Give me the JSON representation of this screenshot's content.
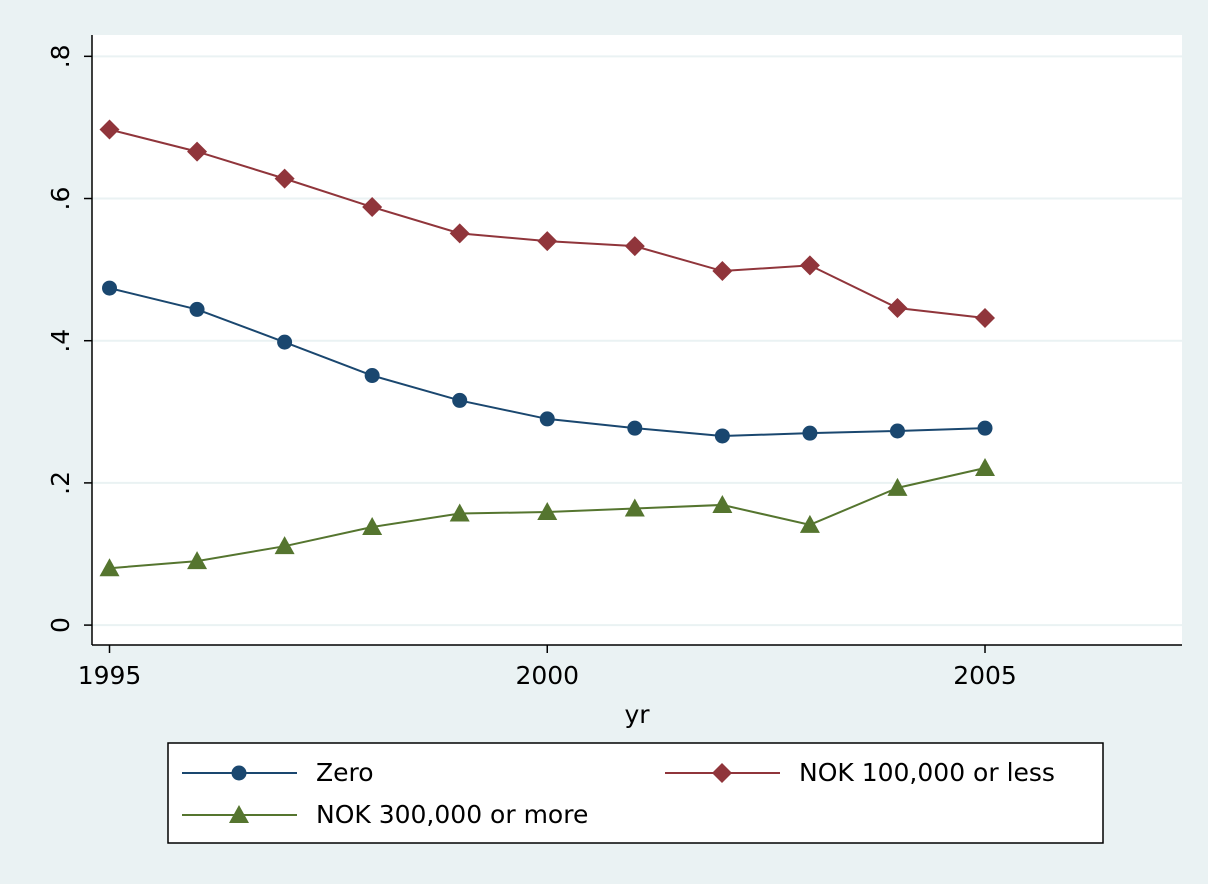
{
  "chart_data": {
    "type": "line",
    "x": [
      1995,
      1996,
      1997,
      1998,
      1999,
      2000,
      2001,
      2002,
      2003,
      2004,
      2005
    ],
    "series": [
      {
        "name": "Zero",
        "color": "#1a476f",
        "marker": "circle",
        "values": [
          0.474,
          0.444,
          0.398,
          0.351,
          0.316,
          0.29,
          0.277,
          0.266,
          0.27,
          0.273,
          0.277
        ]
      },
      {
        "name": "NOK 100,000 or less",
        "color": "#90353b",
        "marker": "diamond",
        "values": [
          0.697,
          0.666,
          0.628,
          0.588,
          0.551,
          0.54,
          0.533,
          0.498,
          0.506,
          0.446,
          0.432
        ]
      },
      {
        "name": "NOK 300,000 or more",
        "color": "#55752f",
        "marker": "triangle",
        "values": [
          0.08,
          0.09,
          0.111,
          0.138,
          0.157,
          0.159,
          0.164,
          0.169,
          0.141,
          0.193,
          0.221
        ]
      }
    ],
    "xlabel": "yr",
    "xlim": [
      1994.8,
      2007.25
    ],
    "xticks": [
      1995,
      2000,
      2005
    ],
    "ylim": [
      -0.028,
      0.83
    ],
    "yticks": [
      0,
      {
        "value": 0.2,
        "label": ".2"
      },
      {
        "value": 0.4,
        "label": ".4"
      },
      {
        "value": 0.6,
        "label": ".6"
      },
      {
        "value": 0.8,
        "label": ".8"
      }
    ],
    "grid": true,
    "legend": "bottom"
  }
}
